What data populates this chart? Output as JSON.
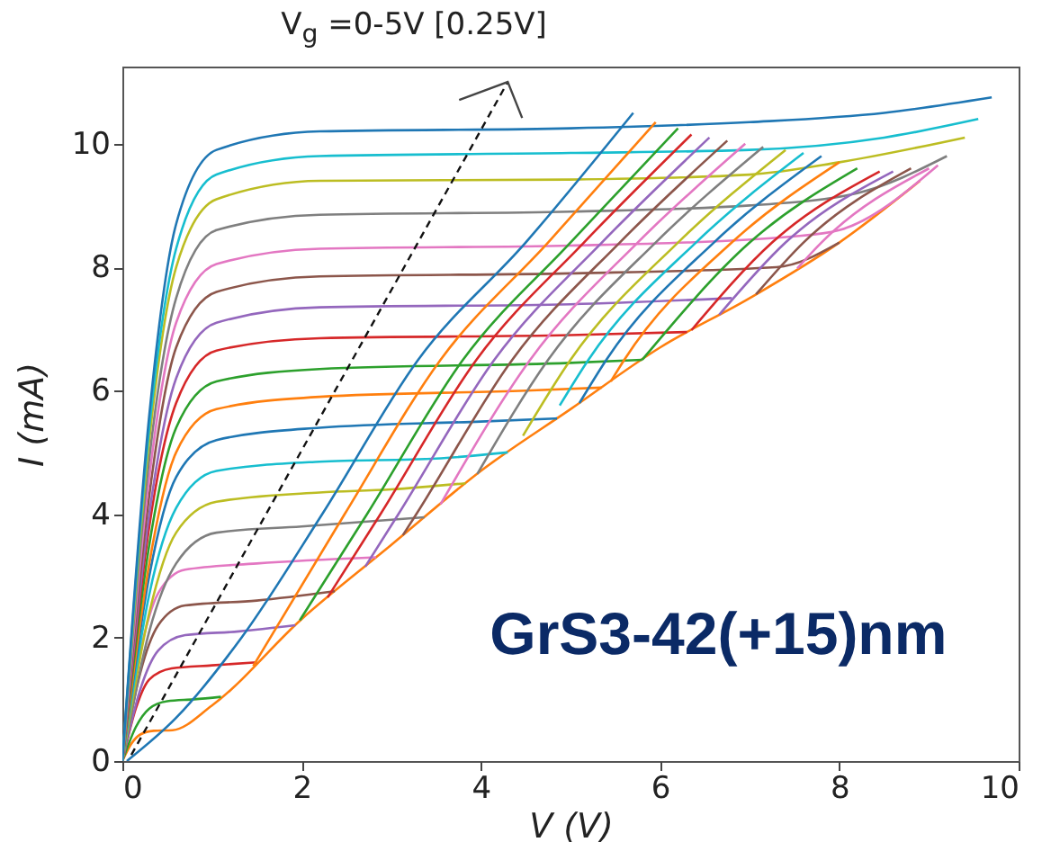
{
  "chart_data": {
    "type": "line",
    "title": "V$_{g}$ =0-5V [0.25V]",
    "xlabel": "V (V)",
    "ylabel": "I (mA)",
    "xlim": [
      0,
      10
    ],
    "ylim": [
      0,
      11.25
    ],
    "xticks": [
      0,
      2,
      4,
      6,
      8,
      10
    ],
    "yticks": [
      0,
      2,
      4,
      6,
      8,
      10
    ],
    "annotations": [
      "GrS3-42(+15)nm"
    ],
    "series": [
      {
        "color": "#ff7f0e",
        "x": [
          0,
          0.1,
          0.2,
          0.35,
          0.56,
          1,
          2,
          3,
          4,
          5,
          6,
          7,
          8,
          8.9
        ],
        "values": [
          0,
          0.28,
          0.43,
          0.49,
          0.5,
          0.9,
          2.3,
          3.5,
          4.7,
          5.7,
          6.7,
          7.5,
          8.4,
          9.4
        ]
      },
      {
        "color": "#2ca02c",
        "x": [
          0,
          0.15,
          0.3,
          0.5,
          0.8,
          1.1
        ],
        "values": [
          0,
          0.55,
          0.85,
          0.97,
          1.0,
          1.04
        ]
      },
      {
        "color": "#d62728",
        "x": [
          0,
          0.15,
          0.3,
          0.55,
          1.0,
          1.5
        ],
        "values": [
          0,
          0.85,
          1.32,
          1.5,
          1.55,
          1.6
        ]
      },
      {
        "color": "#9467bd",
        "x": [
          0,
          0.2,
          0.4,
          0.7,
          1.3,
          1.93
        ],
        "values": [
          0,
          1.16,
          1.79,
          2.04,
          2.1,
          2.2
        ]
      },
      {
        "color": "#8c564b",
        "x": [
          0,
          0.2,
          0.4,
          0.7,
          1.5,
          2.37
        ],
        "values": [
          0,
          1.43,
          2.2,
          2.52,
          2.6,
          2.75
        ]
      },
      {
        "color": "#e377c2",
        "x": [
          0,
          0.2,
          0.4,
          0.7,
          1.5,
          2.83
        ],
        "values": [
          0,
          1.76,
          2.72,
          3.1,
          3.2,
          3.3
        ]
      },
      {
        "color": "#7f7f7f",
        "x": [
          0,
          0.3,
          0.6,
          1.05,
          2.0,
          3.37
        ],
        "values": [
          0,
          2.1,
          3.2,
          3.7,
          3.8,
          3.95
        ]
      },
      {
        "color": "#bcbd22",
        "x": [
          0,
          0.3,
          0.6,
          1.05,
          2.2,
          3,
          3.83
        ],
        "values": [
          0,
          2.4,
          3.7,
          4.2,
          4.35,
          4.4,
          4.5
        ]
      },
      {
        "color": "#17becf",
        "x": [
          0,
          0.3,
          0.6,
          1.05,
          2.2,
          3.5,
          4.3
        ],
        "values": [
          0,
          2.7,
          4.1,
          4.7,
          4.85,
          4.9,
          5.0
        ]
      },
      {
        "color": "#1f77b4",
        "x": [
          0,
          0.3,
          0.6,
          1.05,
          2.2,
          4,
          4.85
        ],
        "values": [
          0,
          3.0,
          4.6,
          5.2,
          5.4,
          5.5,
          5.55
        ]
      },
      {
        "color": "#ff7f0e",
        "x": [
          0,
          0.3,
          0.6,
          1.05,
          2.2,
          4.5,
          5.35
        ],
        "values": [
          0,
          3.2,
          5.0,
          5.7,
          5.9,
          6.0,
          6.05
        ]
      },
      {
        "color": "#2ca02c",
        "x": [
          0,
          0.3,
          0.6,
          1.05,
          2.2,
          5,
          5.8
        ],
        "values": [
          0,
          3.5,
          5.4,
          6.15,
          6.35,
          6.45,
          6.5
        ]
      },
      {
        "color": "#d62728",
        "x": [
          0,
          0.3,
          0.6,
          1.05,
          2.2,
          5,
          6.3
        ],
        "values": [
          0,
          3.8,
          5.8,
          6.65,
          6.85,
          6.9,
          6.95
        ]
      },
      {
        "color": "#9467bd",
        "x": [
          0,
          0.3,
          0.6,
          1.05,
          2.2,
          5,
          6.8
        ],
        "values": [
          0,
          4.0,
          6.2,
          7.1,
          7.35,
          7.4,
          7.5
        ]
      },
      {
        "color": "#8c564b",
        "x": [
          0,
          0.3,
          0.6,
          1.05,
          2.2,
          5,
          7.3,
          8
        ],
        "values": [
          0,
          4.3,
          6.7,
          7.6,
          7.85,
          7.9,
          8.0,
          8.4
        ]
      },
      {
        "color": "#e377c2",
        "x": [
          0,
          0.3,
          0.6,
          1.05,
          2.2,
          5,
          7.5,
          8,
          9.1
        ],
        "values": [
          0,
          4.6,
          7.1,
          8.05,
          8.3,
          8.35,
          8.5,
          8.6,
          9.65
        ]
      },
      {
        "color": "#7f7f7f",
        "x": [
          0,
          0.3,
          0.6,
          1.05,
          2.2,
          5,
          7,
          8.2,
          9.2
        ],
        "values": [
          0,
          4.9,
          7.5,
          8.6,
          8.85,
          8.9,
          9.0,
          9.2,
          9.8
        ]
      },
      {
        "color": "#bcbd22",
        "x": [
          0,
          0.3,
          0.6,
          1.05,
          2.2,
          5,
          7,
          8,
          9.4
        ],
        "values": [
          0,
          5.2,
          8.0,
          9.1,
          9.4,
          9.42,
          9.5,
          9.7,
          10.1
        ]
      },
      {
        "color": "#17becf",
        "x": [
          0,
          0.3,
          0.6,
          1.05,
          2.2,
          5,
          7,
          8.5,
          9.55
        ],
        "values": [
          0,
          5.4,
          8.3,
          9.5,
          9.8,
          9.85,
          9.9,
          10.1,
          10.4
        ]
      },
      {
        "color": "#1f77b4",
        "x": [
          0,
          0.3,
          0.6,
          1.05,
          2.2,
          5,
          7,
          8.5,
          9.7
        ],
        "values": [
          0,
          5.6,
          8.7,
          9.9,
          10.2,
          10.25,
          10.35,
          10.5,
          10.75
        ]
      },
      {
        "color": "#1f77b4",
        "x": [
          0.05,
          0.6,
          1.33,
          2.23,
          3.3,
          4.5,
          5.7
        ],
        "values": [
          0,
          0.7,
          2,
          4,
          6.5,
          8.4,
          10.5
        ]
      },
      {
        "color": "#ff7f0e",
        "x": [
          1.46,
          2.48,
          3.55,
          4.75,
          5.95
        ],
        "values": [
          1.54,
          4,
          6.5,
          8.4,
          10.35
        ]
      },
      {
        "color": "#2ca02c",
        "x": [
          1.98,
          2.73,
          3.8,
          5.0,
          6.2
        ],
        "values": [
          2.28,
          4,
          6.5,
          8.4,
          10.25
        ]
      },
      {
        "color": "#d62728",
        "x": [
          2.29,
          2.88,
          3.95,
          5.15,
          6.35
        ],
        "values": [
          2.65,
          4,
          6.5,
          8.4,
          10.15
        ]
      },
      {
        "color": "#9467bd",
        "x": [
          2.71,
          3.08,
          4.15,
          5.35,
          6.55
        ],
        "values": [
          3.15,
          4,
          6.5,
          8.4,
          10.1
        ]
      },
      {
        "color": "#8c564b",
        "x": [
          3.13,
          3.28,
          4.35,
          5.55,
          6.75
        ],
        "values": [
          3.66,
          4,
          6.5,
          8.4,
          10.05
        ]
      },
      {
        "color": "#e377c2",
        "x": [
          3.55,
          4.55,
          5.75,
          6.95
        ],
        "values": [
          4.16,
          6.5,
          8.4,
          10.0
        ]
      },
      {
        "color": "#7f7f7f",
        "x": [
          3.96,
          4.75,
          5.95,
          7.15
        ],
        "values": [
          4.65,
          6.5,
          8.4,
          9.95
        ]
      },
      {
        "color": "#bcbd22",
        "x": [
          4.47,
          5.0,
          6.2,
          7.4
        ],
        "values": [
          5.27,
          6.5,
          8.4,
          9.9
        ]
      },
      {
        "color": "#17becf",
        "x": [
          4.88,
          5.2,
          6.4,
          7.6
        ],
        "values": [
          5.76,
          6.5,
          8.4,
          9.85
        ]
      },
      {
        "color": "#1f77b4",
        "x": [
          5.1,
          5.4,
          6.6,
          7.8
        ],
        "values": [
          5.8,
          6.5,
          8.4,
          9.8
        ]
      },
      {
        "color": "#ff7f0e",
        "x": [
          5.45,
          5.6,
          6.8,
          8.0
        ],
        "values": [
          6.15,
          6.5,
          8.4,
          9.7
        ]
      },
      {
        "color": "#2ca02c",
        "x": [
          5.8,
          7.0,
          8.2
        ],
        "values": [
          6.5,
          8.4,
          9.6
        ]
      },
      {
        "color": "#d62728",
        "x": [
          6.35,
          7.25,
          8.45
        ],
        "values": [
          6.98,
          8.4,
          9.55
        ]
      },
      {
        "color": "#9467bd",
        "x": [
          6.66,
          7.4,
          8.6
        ],
        "values": [
          7.23,
          8.4,
          9.55
        ]
      },
      {
        "color": "#8c564b",
        "x": [
          7.07,
          7.6,
          8.8
        ],
        "values": [
          7.56,
          8.4,
          9.6
        ]
      },
      {
        "color": "#e377c2",
        "x": [
          7.53,
          7.8,
          9.0
        ],
        "values": [
          7.98,
          8.4,
          9.6
        ]
      }
    ]
  }
}
